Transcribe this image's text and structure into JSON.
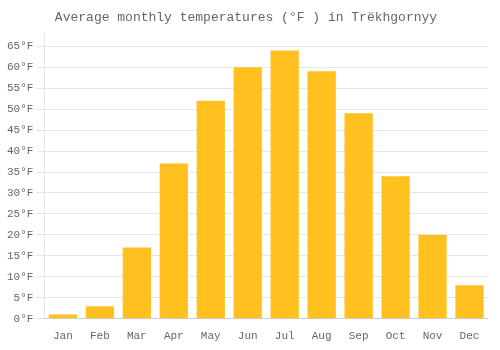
{
  "chart_data": {
    "type": "bar",
    "title": "Average monthly temperatures (°F ) in Trëkhgornyy",
    "categories": [
      "Jan",
      "Feb",
      "Mar",
      "Apr",
      "May",
      "Jun",
      "Jul",
      "Aug",
      "Sep",
      "Oct",
      "Nov",
      "Dec"
    ],
    "values": [
      1,
      3,
      17,
      37,
      52,
      60,
      64,
      59,
      49,
      34,
      20,
      8
    ],
    "color": "#FFC020",
    "ylim": [
      0,
      68
    ],
    "yticks": [
      {
        "value": 0,
        "label": "0°F"
      },
      {
        "value": 5,
        "label": "5°F"
      },
      {
        "value": 10,
        "label": "10°F"
      },
      {
        "value": 15,
        "label": "15°F"
      },
      {
        "value": 20,
        "label": "20°F"
      },
      {
        "value": 25,
        "label": "25°F"
      },
      {
        "value": 30,
        "label": "30°F"
      },
      {
        "value": 35,
        "label": "35°F"
      },
      {
        "value": 40,
        "label": "40°F"
      },
      {
        "value": 45,
        "label": "45°F"
      },
      {
        "value": 50,
        "label": "50°F"
      },
      {
        "value": 55,
        "label": "55°F"
      },
      {
        "value": 60,
        "label": "60°F"
      },
      {
        "value": 65,
        "label": "65°F"
      }
    ],
    "grid": true
  }
}
